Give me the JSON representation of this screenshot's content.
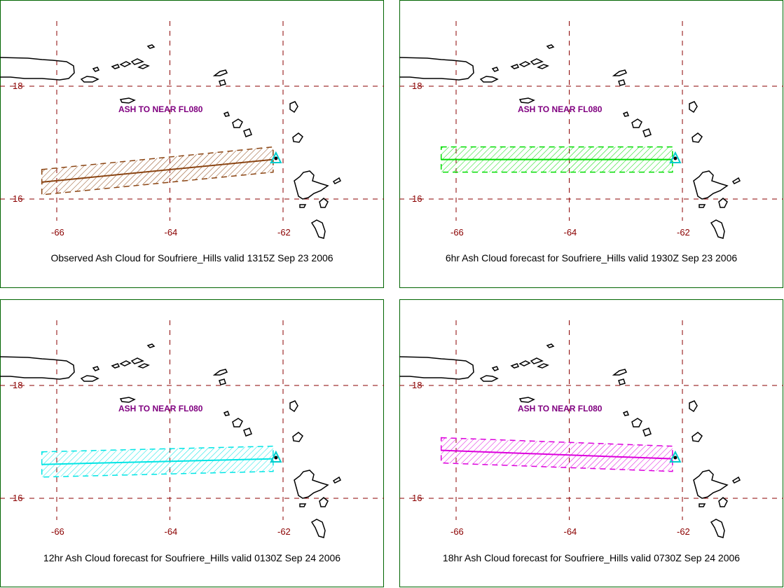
{
  "panels": [
    {
      "caption": "Observed Ash Cloud for Soufriere_Hills valid 1315Z Sep 23 2006",
      "annotation": "ASH TO NEAR FL080",
      "color": "#8b4513",
      "cloud_start": [
        -66.4,
        16.3
      ],
      "cloud_end": [
        -62.2,
        16.7
      ]
    },
    {
      "caption": "6hr Ash Cloud forecast for Soufriere_Hills valid 1930Z Sep 23 2006",
      "annotation": "ASH TO NEAR FL080",
      "color": "#00dd00",
      "cloud_start": [
        -66.4,
        16.7
      ],
      "cloud_end": [
        -62.2,
        16.7
      ]
    },
    {
      "caption": "12hr Ash Cloud forecast for Soufriere_Hills valid 0130Z Sep 24 2006",
      "annotation": "ASH TO NEAR FL080",
      "color": "#00e5e5",
      "cloud_start": [
        -66.4,
        16.6
      ],
      "cloud_end": [
        -62.2,
        16.7
      ]
    },
    {
      "caption": "18hr Ash Cloud forecast for Soufriere_Hills valid 0730Z Sep 24 2006",
      "annotation": "ASH TO NEAR FL080",
      "color": "#dd00dd",
      "cloud_start": [
        -66.4,
        16.85
      ],
      "cloud_end": [
        -62.2,
        16.7
      ]
    }
  ],
  "grid": {
    "lon_labels": [
      "-66",
      "-64",
      "-62"
    ],
    "lat_labels": [
      "18",
      "16"
    ],
    "grid_color": "#8b0000"
  },
  "volcano": {
    "name": "Soufriere_Hills",
    "color": "#00cccc"
  }
}
